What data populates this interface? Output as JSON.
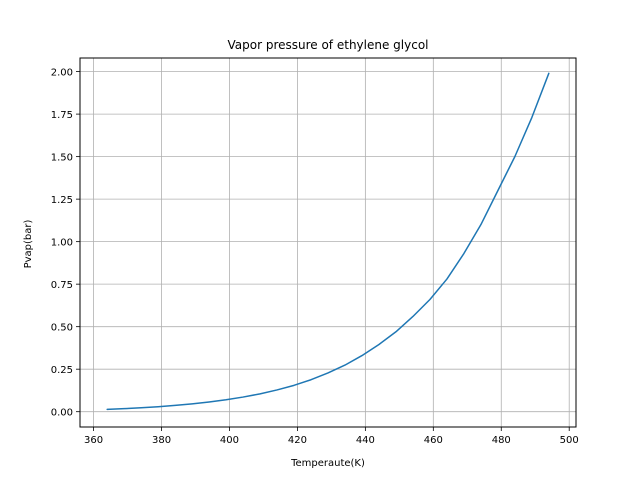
{
  "chart_data": {
    "type": "line",
    "title": "Vapor pressure of ethylene glycol",
    "xlabel": "Temperaute(K)",
    "ylabel": "Pvap(bar)",
    "xlim": [
      356,
      502
    ],
    "ylim": [
      -0.09,
      2.08
    ],
    "x_ticks": [
      360,
      380,
      400,
      420,
      440,
      460,
      480,
      500
    ],
    "y_ticks": [
      0.0,
      0.25,
      0.5,
      0.75,
      1.0,
      1.25,
      1.5,
      1.75,
      2.0
    ],
    "x_tick_labels": [
      "360",
      "380",
      "400",
      "420",
      "440",
      "460",
      "480",
      "500"
    ],
    "y_tick_labels": [
      "0.00",
      "0.25",
      "0.50",
      "0.75",
      "1.00",
      "1.25",
      "1.50",
      "1.75",
      "2.00"
    ],
    "grid": true,
    "series": [
      {
        "color": "#1f77b4",
        "x": [
          364,
          369,
          374,
          379,
          384,
          389,
          394,
          399,
          404,
          409,
          414,
          419,
          424,
          429,
          434,
          439,
          444,
          449,
          454,
          459,
          464,
          469,
          474,
          479,
          484,
          489,
          494
        ],
        "y": [
          0.014,
          0.018,
          0.023,
          0.029,
          0.037,
          0.046,
          0.057,
          0.07,
          0.086,
          0.105,
          0.128,
          0.155,
          0.188,
          0.228,
          0.274,
          0.33,
          0.395,
          0.47,
          0.56,
          0.66,
          0.78,
          0.93,
          1.1,
          1.3,
          1.5,
          1.73,
          1.99
        ]
      }
    ]
  }
}
